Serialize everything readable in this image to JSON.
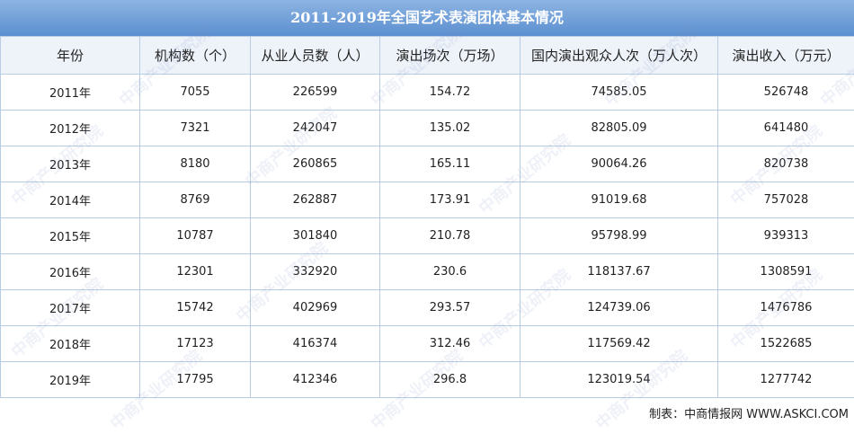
{
  "title": "2011-2019年全国艺术表演团体基本情况",
  "table": {
    "header": [
      "年份",
      "机构数（个）",
      "从业人员数（人）",
      "演出场次（万场）",
      "国内演出观众人次（万人次）",
      "演出收入（万元）"
    ],
    "rows": [
      [
        "2011年",
        "7055",
        "226599",
        "154.72",
        "74585.05",
        "526748"
      ],
      [
        "2012年",
        "7321",
        "242047",
        "135.02",
        "82805.09",
        "641480"
      ],
      [
        "2013年",
        "8180",
        "260865",
        "165.11",
        "90064.26",
        "820738"
      ],
      [
        "2014年",
        "8769",
        "262887",
        "173.91",
        "91019.68",
        "757028"
      ],
      [
        "2015年",
        "10787",
        "301840",
        "210.78",
        "95798.99",
        "939313"
      ],
      [
        "2016年",
        "12301",
        "332920",
        "230.6",
        "118137.67",
        "1308591"
      ],
      [
        "2017年",
        "15742",
        "402969",
        "293.57",
        "124739.06",
        "1476786"
      ],
      [
        "2018年",
        "17123",
        "416374",
        "312.46",
        "117569.42",
        "1522685"
      ],
      [
        "2019年",
        "17795",
        "412346",
        "296.8",
        "123019.54",
        "1277742"
      ]
    ]
  },
  "footer": "制表：中商情报网 WWW.ASKCI.COM",
  "watermark": "中商产业研究院"
}
